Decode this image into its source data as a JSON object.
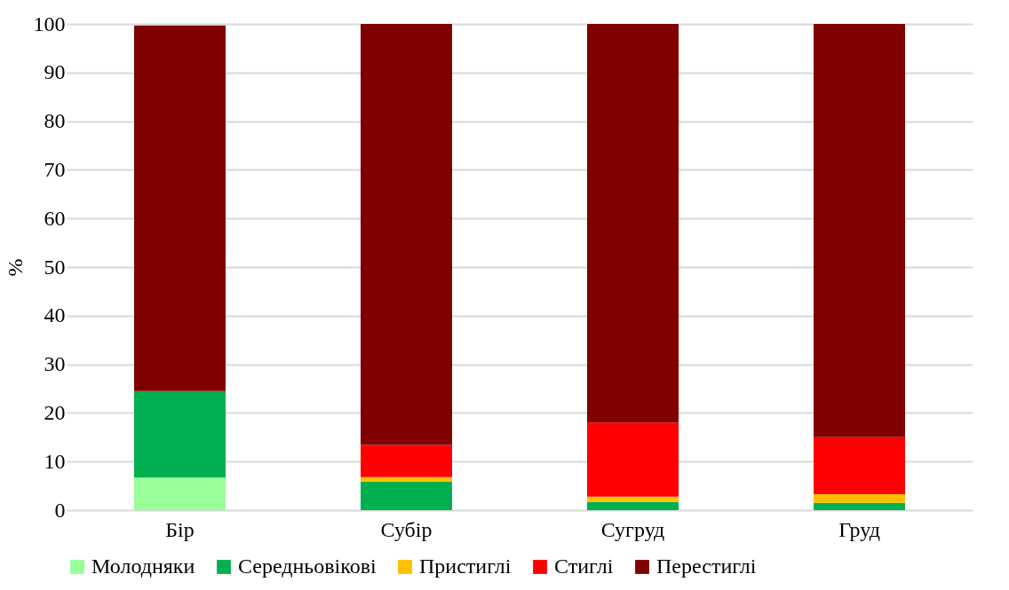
{
  "chart_data": {
    "type": "bar",
    "stacked": true,
    "ylabel": "%",
    "categories": [
      "Бір",
      "Субір",
      "Сугруд",
      "Груд"
    ],
    "series": [
      {
        "name": "Молодняки",
        "color": "#99ff99",
        "values": [
          6.7,
          0,
          0,
          0
        ]
      },
      {
        "name": "Середньовікові",
        "color": "#00b050",
        "values": [
          17.8,
          5.9,
          1.7,
          1.5
        ]
      },
      {
        "name": "Пристиглі",
        "color": "#ffc000",
        "values": [
          0,
          0.9,
          1.1,
          1.8
        ]
      },
      {
        "name": "Стиглі",
        "color": "#ff0000",
        "values": [
          0,
          6.6,
          15.2,
          11.7
        ]
      },
      {
        "name": "Перестиглі",
        "color": "#800000",
        "values": [
          75.2,
          86.6,
          82.0,
          85.0
        ]
      }
    ],
    "ylim": [
      0,
      100
    ],
    "yticks": [
      0,
      10,
      20,
      30,
      40,
      50,
      60,
      70,
      80,
      90,
      100
    ],
    "grid": "y",
    "legend": "bottom"
  }
}
